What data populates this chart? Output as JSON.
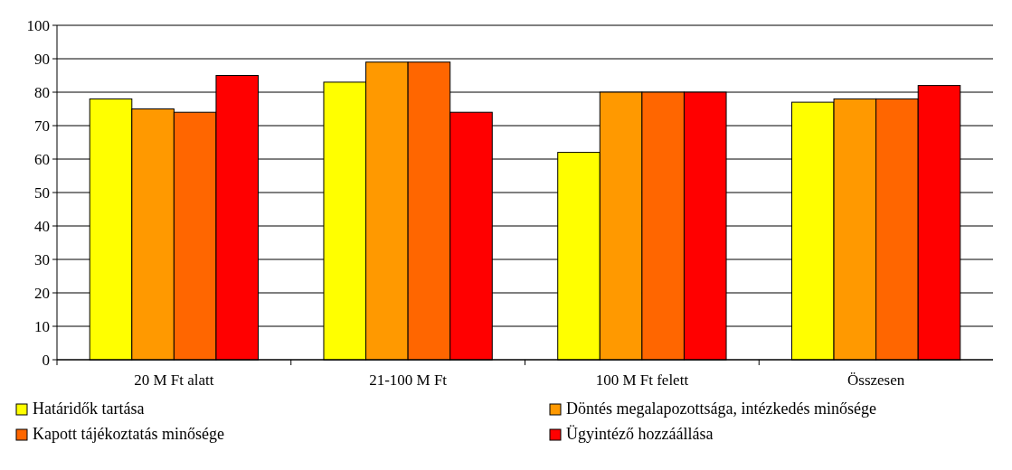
{
  "chart_data": {
    "type": "bar",
    "categories": [
      "20 M Ft alatt",
      "21-100 M Ft",
      "100 M Ft felett",
      "Összesen"
    ],
    "series": [
      {
        "name": "Határidők tartása",
        "color": "#ffff00",
        "values": [
          78,
          83,
          62,
          77
        ]
      },
      {
        "name": "Döntés megalapozottsága, intézkedés minősége",
        "color": "#ff9900",
        "values": [
          75,
          89,
          80,
          78
        ]
      },
      {
        "name": "Kapott tájékoztatás minősége",
        "color": "#ff6600",
        "values": [
          74,
          89,
          80,
          78
        ]
      },
      {
        "name": "Ügyintéző hozzáállása",
        "color": "#ff0000",
        "values": [
          85,
          74,
          80,
          82
        ]
      }
    ],
    "ylim": [
      0,
      100
    ],
    "yticks": [
      0,
      10,
      20,
      30,
      40,
      50,
      60,
      70,
      80,
      90,
      100
    ],
    "grid": "y",
    "legend": "bottom"
  }
}
